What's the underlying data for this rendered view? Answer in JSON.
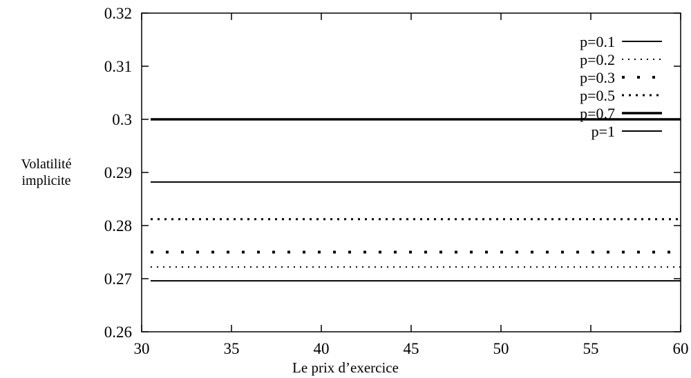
{
  "chart_data": {
    "type": "line",
    "title": "",
    "xlabel": "Le prix d’exercice",
    "ylabel_lines": [
      "Volatilité",
      "implicite"
    ],
    "xlim": [
      30,
      60
    ],
    "ylim": [
      0.26,
      0.32
    ],
    "xticks": [
      "30",
      "35",
      "40",
      "45",
      "50",
      "55",
      "60"
    ],
    "yticks": [
      "0.26",
      "0.27",
      "0.28",
      "0.29",
      "0.3",
      "0.31",
      "0.32"
    ],
    "grid": false,
    "legend_position": "top-right",
    "x": [
      30.5,
      60
    ],
    "series": [
      {
        "name": "p=0.1",
        "style": "solid",
        "values": [
          0.2696,
          0.2696
        ]
      },
      {
        "name": "p=0.2",
        "style": "dotted-fine",
        "values": [
          0.2722,
          0.2722
        ]
      },
      {
        "name": "p=0.3",
        "style": "dotted-sparse",
        "values": [
          0.275,
          0.275
        ]
      },
      {
        "name": "p=0.5",
        "style": "dotted-dense",
        "values": [
          0.2812,
          0.2812
        ]
      },
      {
        "name": "p=0.7",
        "style": "thick",
        "values": [
          0.3,
          0.3
        ]
      },
      {
        "name": "p=1",
        "style": "solid",
        "values": [
          0.2882,
          0.2882
        ]
      }
    ]
  }
}
